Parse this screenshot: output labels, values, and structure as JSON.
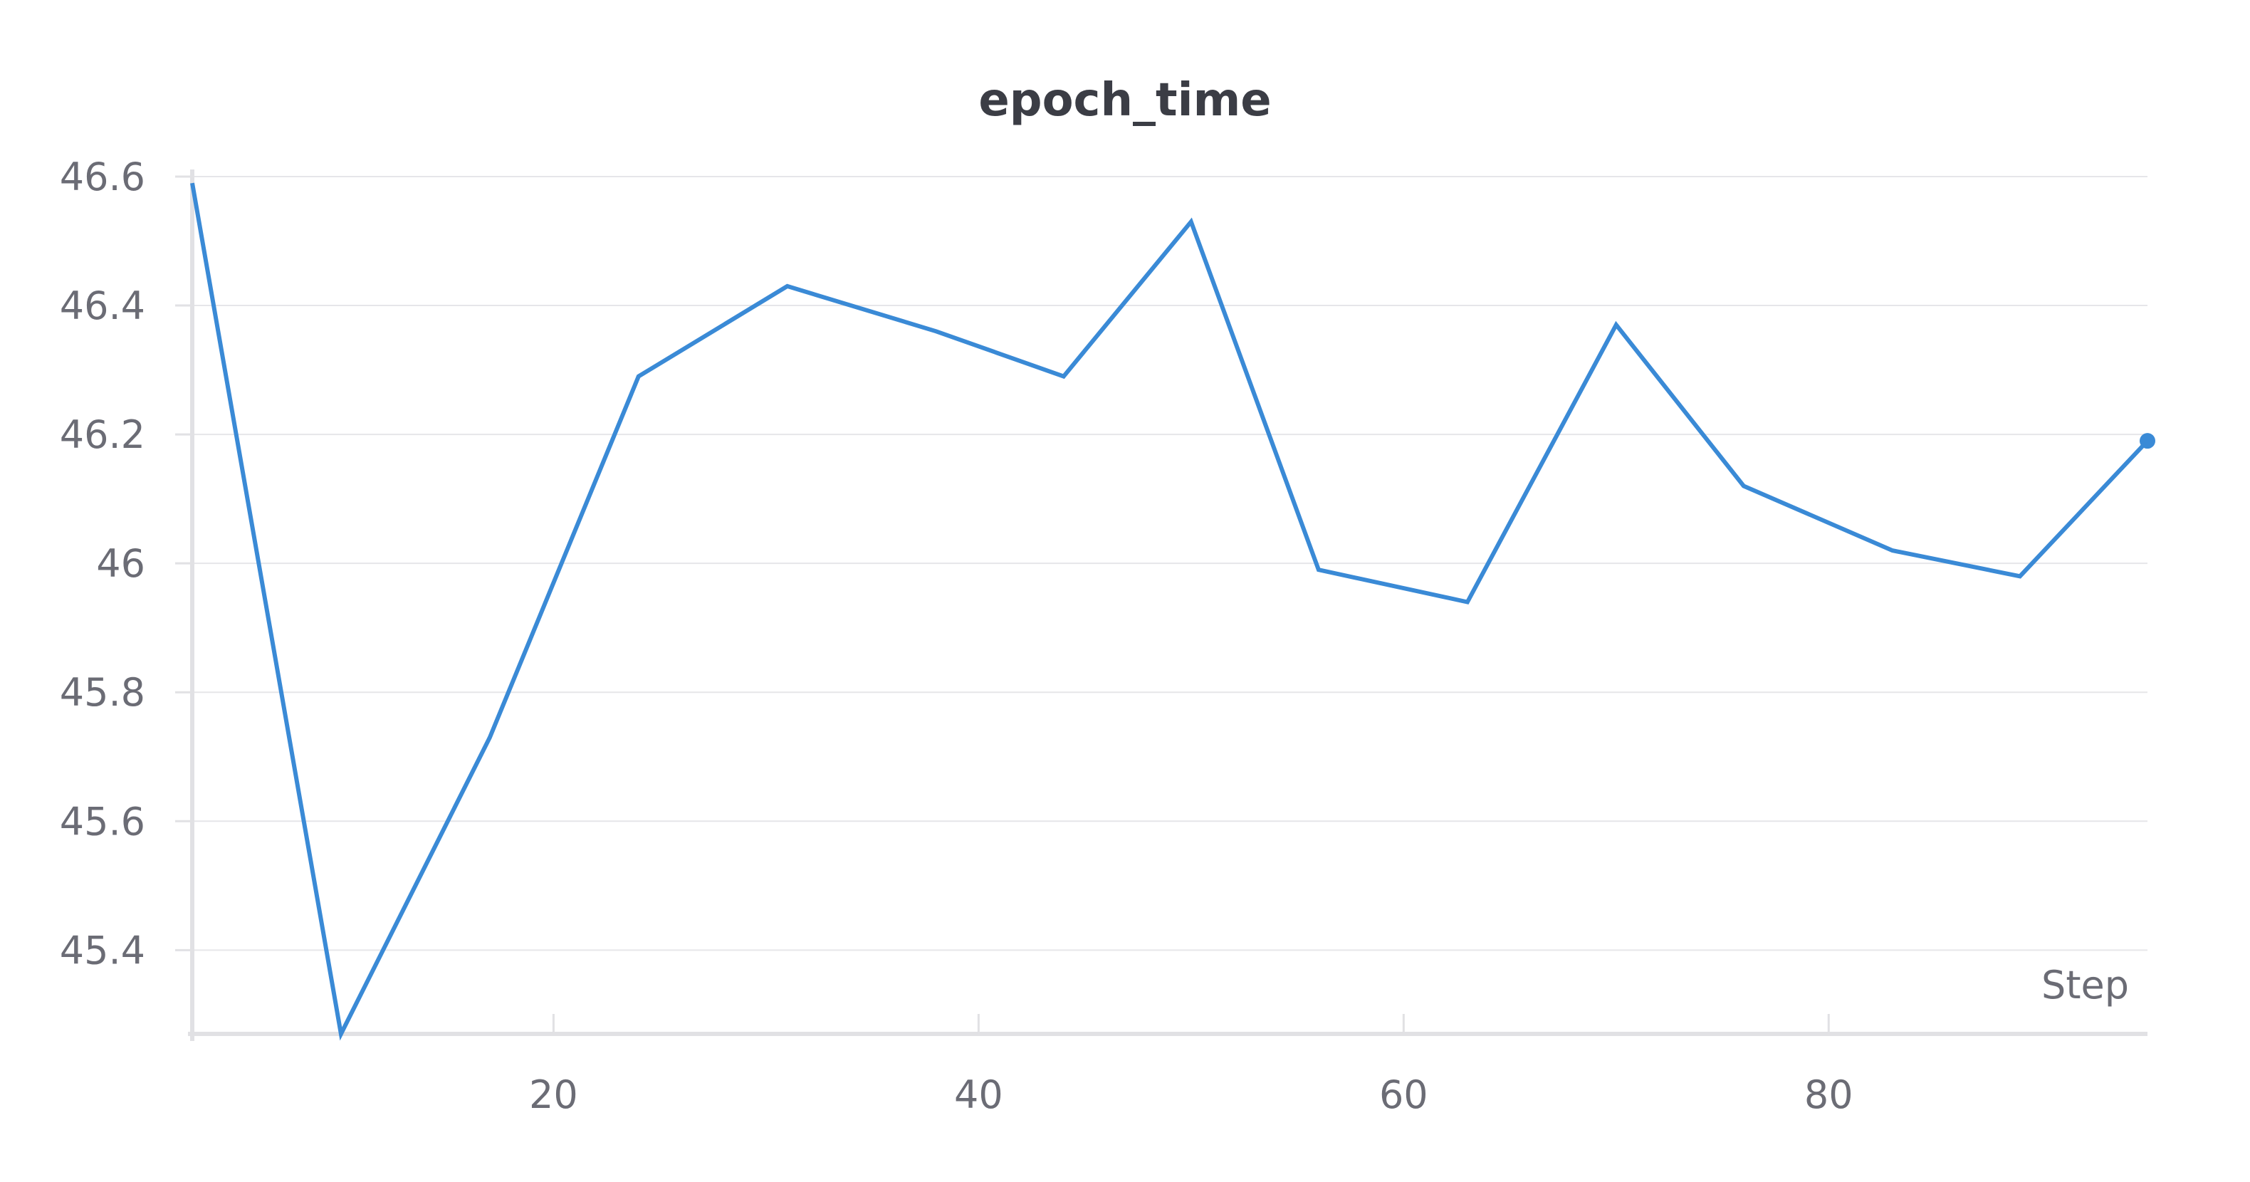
{
  "chart_data": {
    "type": "line",
    "title": "epoch_time",
    "xlabel": "Step",
    "ylabel": "",
    "xlim": [
      3,
      95
    ],
    "ylim": [
      45.27,
      46.6
    ],
    "x_ticks": [
      20,
      40,
      60,
      80
    ],
    "y_ticks": [
      45.4,
      45.6,
      45.8,
      46,
      46.2,
      46.4,
      46.6
    ],
    "x_tick_labels": [
      "20",
      "40",
      "60",
      "80"
    ],
    "y_tick_labels": [
      "45.4",
      "45.6",
      "45.8",
      "46",
      "46.2",
      "46.4",
      "46.6"
    ],
    "grid": true,
    "legend": "none",
    "series": [
      {
        "color": "#3a8ad6",
        "x": [
          3,
          10,
          17,
          24,
          31,
          38,
          44,
          50,
          56,
          63,
          70,
          76,
          83,
          89,
          95
        ],
        "y": [
          46.59,
          45.27,
          45.73,
          46.29,
          46.43,
          46.36,
          46.29,
          46.53,
          45.99,
          45.94,
          46.37,
          46.12,
          46.02,
          45.98,
          46.19
        ],
        "end_marker": true
      }
    ]
  }
}
